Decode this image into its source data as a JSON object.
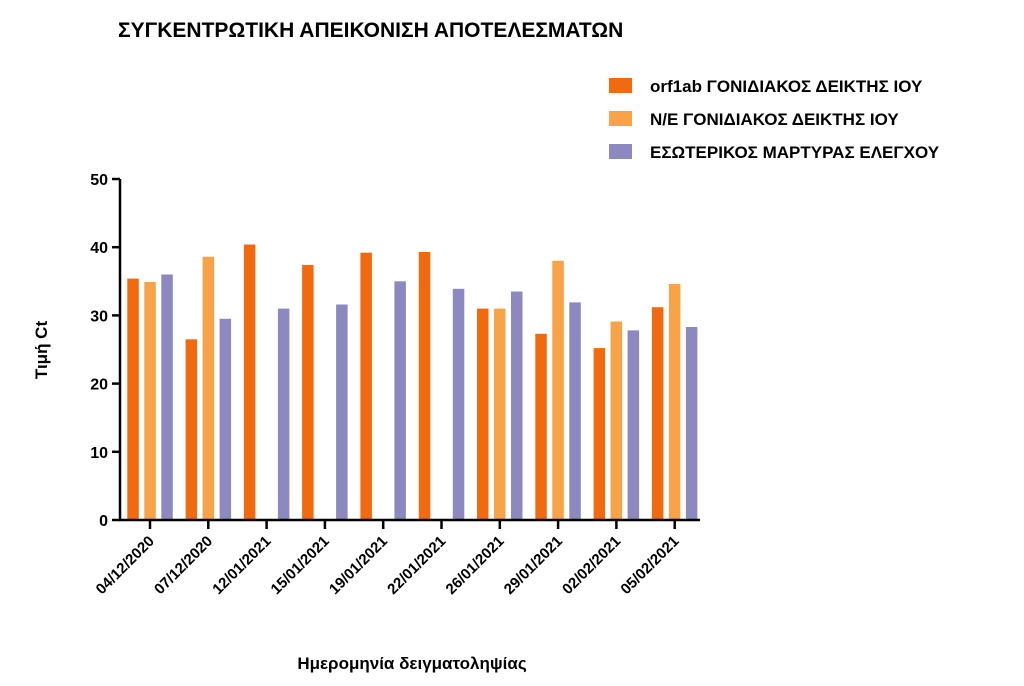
{
  "chart_data": {
    "type": "bar",
    "title": "ΣΥΓΚΕΝΤΡΩΤΙΚΗ ΑΠΕΙΚΟΝΙΣΗ ΑΠΟΤΕΛΕΣΜΑΤΩΝ",
    "xlabel": "Ημερομηνία δειγματοληψίας",
    "ylabel": "Τιμή Ct",
    "ylim": [
      0,
      50
    ],
    "yticks": [
      0,
      10,
      20,
      30,
      40,
      50
    ],
    "grid": false,
    "legend_position": "top-right",
    "categories": [
      "04/12/2020",
      "07/12/2020",
      "12/01/2021",
      "15/01/2021",
      "19/01/2021",
      "22/01/2021",
      "26/01/2021",
      "29/01/2021",
      "02/02/2021",
      "05/02/2021"
    ],
    "series": [
      {
        "name": "orf1ab ΓΟΝΙΔΙΑΚΟΣ ΔΕΙΚΤΗΣ ΙΟΥ",
        "color": "#f26a10",
        "values": [
          35.4,
          26.5,
          40.4,
          37.4,
          39.2,
          39.3,
          31.0,
          27.3,
          25.2,
          31.2
        ]
      },
      {
        "name": "Ν/Ε ΓΟΝΙΔΙΑΚΟΣ ΔΕΙΚΤΗΣ ΙΟΥ",
        "color": "#f8a347",
        "values": [
          34.9,
          38.6,
          null,
          null,
          null,
          null,
          31.0,
          38.0,
          29.1,
          34.6
        ]
      },
      {
        "name": "ΕΣΩΤΕΡΙΚΟΣ ΜΑΡΤΥΡΑΣ ΕΛΕΓΧΟΥ",
        "color": "#8d89c0",
        "values": [
          36.0,
          29.5,
          31.0,
          31.6,
          35.0,
          33.9,
          33.5,
          31.9,
          27.8,
          28.3
        ]
      }
    ]
  }
}
